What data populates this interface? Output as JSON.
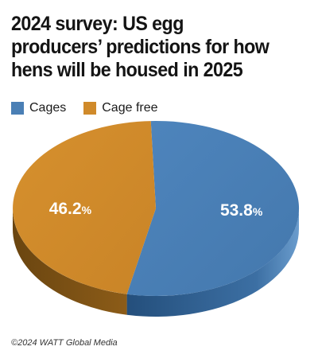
{
  "chart_data": {
    "type": "pie",
    "title": "2024 survey:  US egg producers’ predictions for how hens will be housed in 2025",
    "legend_position": "top-left",
    "slices": [
      {
        "name": "Cages",
        "value": 53.8,
        "label": "53.8",
        "color": "#4a7fb5"
      },
      {
        "name": "Cage free",
        "value": 46.2,
        "label": "46.2",
        "color": "#d08a2a"
      }
    ],
    "unit_symbol": "%"
  },
  "credit": "©2024 WATT Global Media"
}
